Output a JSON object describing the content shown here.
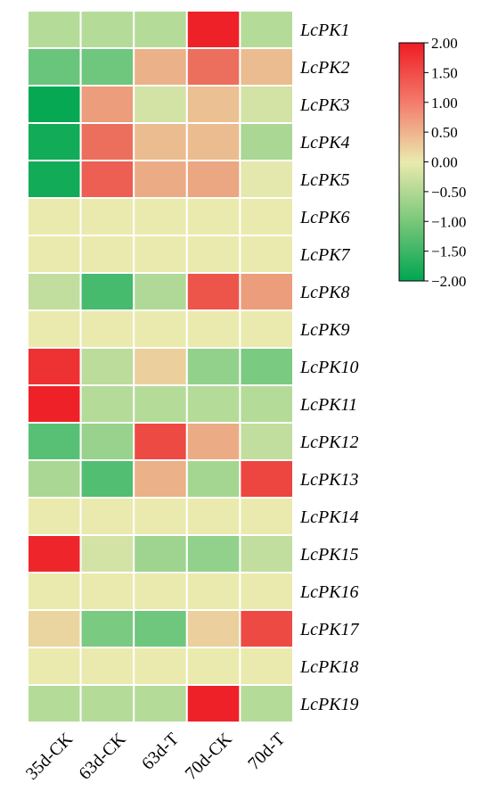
{
  "chart_data": {
    "type": "heatmap",
    "columns": [
      "35d-CK",
      "63d-CK",
      "63d-T",
      "70d-CK",
      "70d-T"
    ],
    "rows": [
      "LcPK1",
      "LcPK2",
      "LcPK3",
      "LcPK4",
      "LcPK5",
      "LcPK6",
      "LcPK7",
      "LcPK8",
      "LcPK9",
      "LcPK10",
      "LcPK11",
      "LcPK12",
      "LcPK13",
      "LcPK14",
      "LcPK15",
      "LcPK16",
      "LcPK17",
      "LcPK18",
      "LcPK19"
    ],
    "values": [
      [
        -0.45,
        -0.45,
        -0.45,
        1.95,
        -0.45
      ],
      [
        -1.1,
        -1.05,
        0.55,
        1.2,
        0.45
      ],
      [
        -1.95,
        0.75,
        -0.2,
        0.4,
        -0.2
      ],
      [
        -1.85,
        1.2,
        0.45,
        0.45,
        -0.55
      ],
      [
        -1.85,
        1.35,
        0.6,
        0.65,
        -0.05
      ],
      [
        0.0,
        0.0,
        0.0,
        0.0,
        0.0
      ],
      [
        0.0,
        0.0,
        0.0,
        0.0,
        0.0
      ],
      [
        -0.35,
        -1.4,
        -0.5,
        1.45,
        0.75
      ],
      [
        0.0,
        0.0,
        0.0,
        0.0,
        0.0
      ],
      [
        1.8,
        -0.4,
        0.25,
        -0.75,
        -0.95
      ],
      [
        1.95,
        -0.45,
        -0.45,
        -0.45,
        -0.45
      ],
      [
        -1.25,
        -0.7,
        1.55,
        0.6,
        -0.35
      ],
      [
        -0.55,
        -1.3,
        0.55,
        -0.6,
        1.6
      ],
      [
        0.0,
        0.0,
        0.0,
        0.0,
        0.0
      ],
      [
        1.9,
        -0.2,
        -0.65,
        -0.75,
        -0.35
      ],
      [
        0.0,
        0.0,
        0.0,
        0.0,
        0.0
      ],
      [
        0.2,
        -0.95,
        -1.05,
        0.25,
        1.55
      ],
      [
        0.0,
        0.0,
        0.0,
        0.0,
        0.0
      ],
      [
        -0.45,
        -0.45,
        -0.45,
        1.95,
        -0.45
      ]
    ],
    "colorbar": {
      "min": -2.0,
      "max": 2.0,
      "tick_labels": [
        "2.00",
        "1.50",
        "1.00",
        "0.50",
        "0.00",
        "−0.50",
        "−1.00",
        "−1.50",
        "−2.00"
      ],
      "tick_values": [
        2.0,
        1.5,
        1.0,
        0.5,
        0.0,
        -0.5,
        -1.0,
        -1.5,
        -2.0
      ],
      "color_low": "#00a651",
      "color_mid": "#eaeaae",
      "color_high": "#ee1c25"
    },
    "grid": "white cell borders",
    "legend_position": "top-right"
  }
}
